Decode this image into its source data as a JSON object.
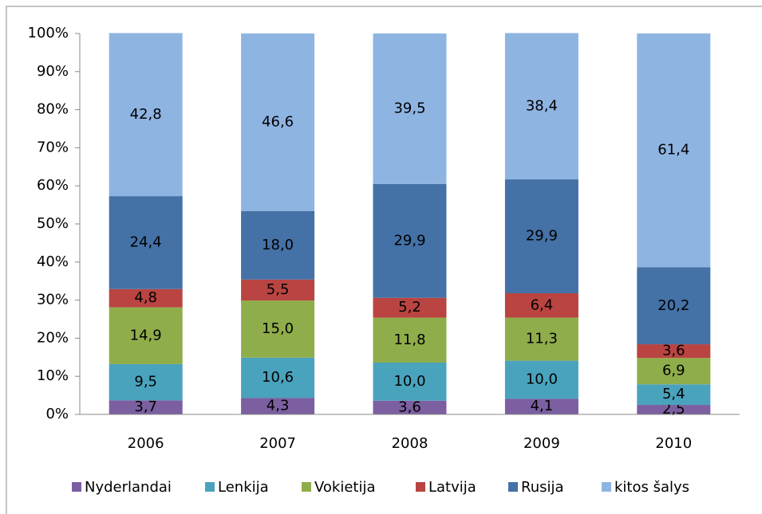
{
  "chart_data": {
    "type": "stacked_bar",
    "categories": [
      "2006",
      "2007",
      "2008",
      "2009",
      "2010"
    ],
    "series": [
      {
        "name": "Nyderlandai",
        "color": "#7b5fa0",
        "values": [
          3.7,
          4.3,
          3.6,
          4.1,
          2.5
        ],
        "value_labels": [
          "3,7",
          "4,3",
          "3,6",
          "4,1",
          "2,5"
        ]
      },
      {
        "name": "Lenkija",
        "color": "#4aa3bd",
        "values": [
          9.5,
          10.6,
          10.0,
          10.0,
          5.4
        ],
        "value_labels": [
          "9,5",
          "10,6",
          "10,0",
          "10,0",
          "5,4"
        ]
      },
      {
        "name": "Vokietija",
        "color": "#8fad4b",
        "values": [
          14.9,
          15.0,
          11.8,
          11.3,
          6.9
        ],
        "value_labels": [
          "14,9",
          "15,0",
          "11,8",
          "11,3",
          "6,9"
        ]
      },
      {
        "name": "Latvija",
        "color": "#b94441",
        "values": [
          4.8,
          5.5,
          5.2,
          6.4,
          3.6
        ],
        "value_labels": [
          "4,8",
          "5,5",
          "5,2",
          "6,4",
          "3,6"
        ]
      },
      {
        "name": "Rusija",
        "color": "#4471a6",
        "values": [
          24.4,
          18.0,
          29.9,
          29.9,
          20.2
        ],
        "value_labels": [
          "24,4",
          "18,0",
          "29,9",
          "29,9",
          "20,2"
        ]
      },
      {
        "name": "kitos šalys",
        "color": "#8eb4e2",
        "values": [
          42.8,
          46.6,
          39.5,
          38.4,
          61.4
        ],
        "value_labels": [
          "42,8",
          "46,6",
          "39,5",
          "38,4",
          "61,4"
        ]
      }
    ],
    "ylim": [
      0,
      100
    ],
    "yticks": [
      {
        "value": 0,
        "label": "0%"
      },
      {
        "value": 10,
        "label": "10%"
      },
      {
        "value": 20,
        "label": "20%"
      },
      {
        "value": 30,
        "label": "30%"
      },
      {
        "value": 40,
        "label": "40%"
      },
      {
        "value": 50,
        "label": "50%"
      },
      {
        "value": 60,
        "label": "60%"
      },
      {
        "value": 70,
        "label": "70%"
      },
      {
        "value": 80,
        "label": "80%"
      },
      {
        "value": 90,
        "label": "90%"
      },
      {
        "value": 100,
        "label": "100%"
      }
    ],
    "grid": false,
    "legend": "bottom"
  }
}
